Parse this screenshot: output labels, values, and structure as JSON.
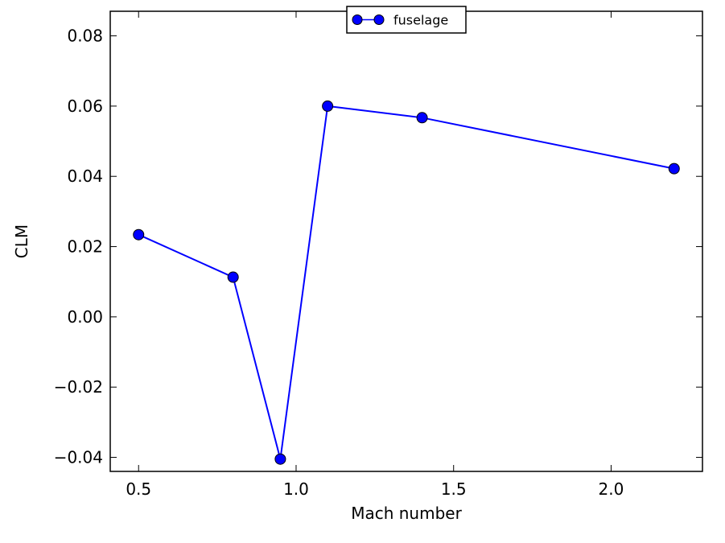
{
  "chart_data": {
    "type": "line",
    "title": "",
    "xlabel": "Mach number",
    "ylabel": "CLM",
    "xlim": [
      0.41,
      2.29
    ],
    "ylim": [
      -0.044,
      0.087
    ],
    "x_ticks": [
      0.5,
      1.0,
      1.5,
      2.0
    ],
    "x_tick_labels": [
      "0.5",
      "1.0",
      "1.5",
      "2.0"
    ],
    "y_ticks": [
      -0.04,
      -0.02,
      0.0,
      0.02,
      0.04,
      0.06,
      0.08
    ],
    "y_tick_labels": [
      "−0.04",
      "−0.02",
      "0.00",
      "0.02",
      "0.04",
      "0.06",
      "0.08"
    ],
    "grid": false,
    "legend_position": "top-center",
    "series": [
      {
        "name": "fuselage",
        "color": "#0000ff",
        "marker": "circle",
        "x": [
          0.5,
          0.8,
          0.95,
          1.1,
          1.4,
          2.2
        ],
        "y": [
          0.0234,
          0.0113,
          -0.0405,
          0.06,
          0.0567,
          0.0422
        ]
      }
    ]
  }
}
